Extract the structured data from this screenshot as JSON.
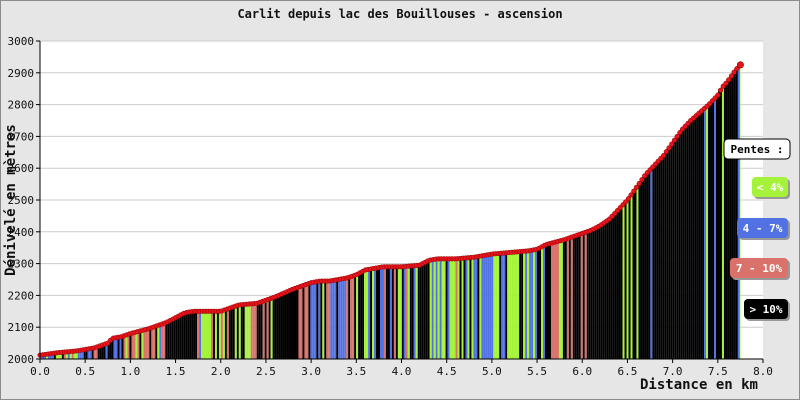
{
  "chart_data": {
    "type": "area",
    "title": "Carlit depuis lac des Bouillouses - ascension",
    "xlabel": "Distance en km",
    "ylabel": "Dénivelé en mètres",
    "xlim": [
      0,
      8
    ],
    "ylim": [
      2000,
      3000
    ],
    "x_ticks": [
      "0.0",
      "0.5",
      "1.0",
      "1.5",
      "2.0",
      "2.5",
      "3.0",
      "3.5",
      "4.0",
      "4.5",
      "5.0",
      "5.5",
      "6.0",
      "6.5",
      "7.0",
      "7.5",
      "8.0"
    ],
    "y_ticks": [
      "2000",
      "2100",
      "2200",
      "2300",
      "2400",
      "2500",
      "2600",
      "2700",
      "2800",
      "2900",
      "3000"
    ],
    "grid": "horizontal",
    "profile": {
      "x": [
        0.0,
        0.2,
        0.4,
        0.6,
        0.75,
        0.8,
        0.9,
        1.0,
        1.2,
        1.4,
        1.5,
        1.6,
        1.7,
        1.8,
        2.0,
        2.1,
        2.2,
        2.4,
        2.5,
        2.6,
        2.8,
        3.0,
        3.1,
        3.2,
        3.4,
        3.5,
        3.6,
        3.7,
        3.8,
        4.0,
        4.2,
        4.3,
        4.4,
        4.6,
        4.8,
        5.0,
        5.2,
        5.4,
        5.5,
        5.6,
        5.8,
        6.0,
        6.1,
        6.2,
        6.3,
        6.4,
        6.5,
        6.6,
        6.7,
        6.8,
        6.9,
        7.0,
        7.1,
        7.2,
        7.3,
        7.4,
        7.5,
        7.55,
        7.6,
        7.65,
        7.7,
        7.75
      ],
      "elevation": [
        2012,
        2020,
        2025,
        2035,
        2050,
        2065,
        2070,
        2080,
        2095,
        2115,
        2130,
        2145,
        2150,
        2150,
        2150,
        2160,
        2170,
        2175,
        2185,
        2195,
        2220,
        2240,
        2245,
        2245,
        2255,
        2265,
        2280,
        2285,
        2290,
        2290,
        2295,
        2310,
        2315,
        2315,
        2320,
        2330,
        2335,
        2340,
        2345,
        2360,
        2375,
        2395,
        2405,
        2420,
        2440,
        2470,
        2500,
        2540,
        2580,
        2610,
        2640,
        2680,
        2720,
        2750,
        2775,
        2800,
        2830,
        2855,
        2870,
        2890,
        2910,
        2925
      ]
    },
    "point_color": "#e8141c",
    "slope_colors": {
      "lt4": "#a4f33a",
      "4to7": "#5272e4",
      "7to10": "#d9726a",
      "gt10": "#000000"
    },
    "legend": {
      "title": "Pentes :",
      "items": [
        {
          "label": "< 4%",
          "key": "lt4",
          "text_color": "#ffffff"
        },
        {
          "label": "4 - 7%",
          "key": "4to7",
          "text_color": "#ffffff"
        },
        {
          "label": "7 - 10%",
          "key": "7to10",
          "text_color": "#ffffff"
        },
        {
          "label": "> 10%",
          "key": "gt10",
          "text_color": "#ffffff"
        }
      ]
    }
  }
}
